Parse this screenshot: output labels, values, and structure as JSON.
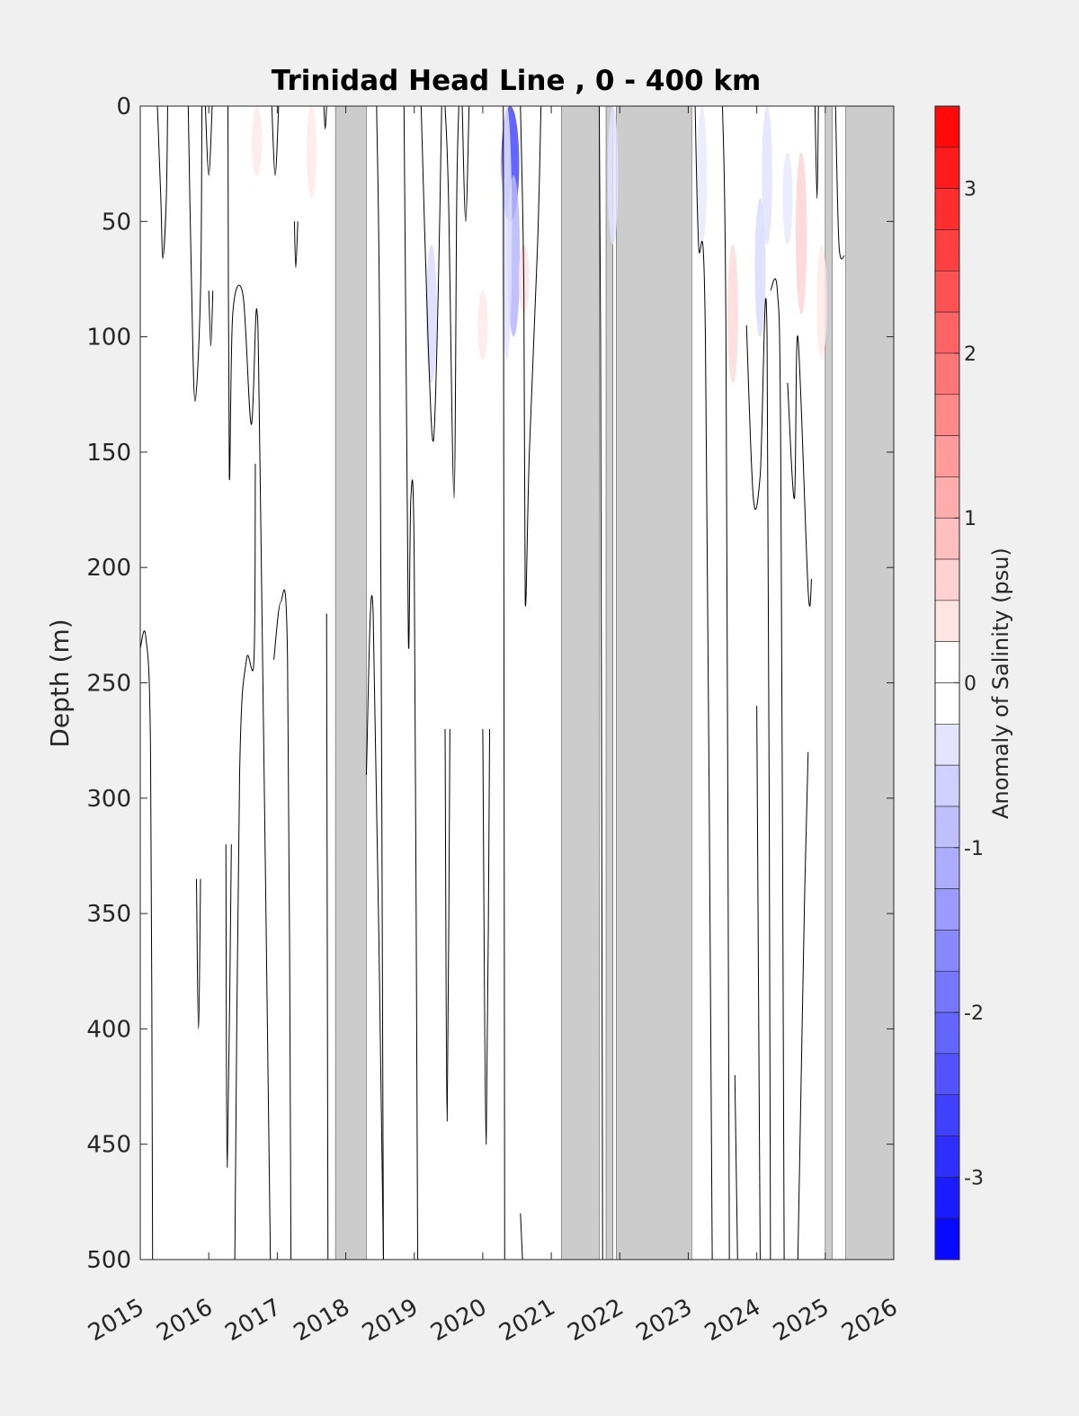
{
  "chart_data": {
    "type": "heatmap",
    "title": "Trinidad Head Line , 0 - 400 km",
    "xlabel": "",
    "ylabel": "Depth (m)",
    "colorbar_label": "Anomaly of Salinity (psu)",
    "xlim": [
      2015,
      2026
    ],
    "ylim": [
      0,
      500
    ],
    "y_reversed": true,
    "x_ticks": [
      2015,
      2016,
      2017,
      2018,
      2019,
      2020,
      2021,
      2022,
      2023,
      2024,
      2025,
      2026
    ],
    "y_ticks": [
      0,
      50,
      100,
      150,
      200,
      250,
      300,
      350,
      400,
      450,
      500
    ],
    "colorbar_ticks": [
      3,
      2,
      1,
      0,
      -1,
      -2,
      -3
    ],
    "colorbar_range": [
      -3.5,
      3.5
    ],
    "colorbar_step": 0.25,
    "colors": {
      "positive": "#ff0000",
      "negative": "#0000ff",
      "zero": "#ffffff",
      "no_data": "#cccccc",
      "contour": "#000000"
    },
    "no_data_periods": [
      [
        2017.85,
        2018.3
      ],
      [
        2021.15,
        2021.7
      ],
      [
        2021.8,
        2021.9
      ],
      [
        2021.95,
        2023.05
      ],
      [
        2025.0,
        2025.1
      ],
      [
        2025.3,
        2026.0
      ]
    ],
    "anomaly_patches": [
      {
        "x": 2020.4,
        "y_top": 0,
        "y_bottom": 50,
        "value": -2.5
      },
      {
        "x": 2020.45,
        "y_top": 30,
        "y_bottom": 100,
        "value": -1.0
      },
      {
        "x": 2019.25,
        "y_top": 60,
        "y_bottom": 120,
        "value": -0.5
      },
      {
        "x": 2020.35,
        "y_top": 0,
        "y_bottom": 110,
        "value": -0.4
      },
      {
        "x": 2021.9,
        "y_top": 0,
        "y_bottom": 60,
        "value": -0.4
      },
      {
        "x": 2023.2,
        "y_top": 0,
        "y_bottom": 60,
        "value": -0.3
      },
      {
        "x": 2024.05,
        "y_top": 40,
        "y_bottom": 100,
        "value": -0.5
      },
      {
        "x": 2024.15,
        "y_top": 0,
        "y_bottom": 60,
        "value": -0.4
      },
      {
        "x": 2024.45,
        "y_top": 20,
        "y_bottom": 60,
        "value": -0.3
      },
      {
        "x": 2017.5,
        "y_top": 0,
        "y_bottom": 40,
        "value": 0.3
      },
      {
        "x": 2016.7,
        "y_top": 0,
        "y_bottom": 30,
        "value": 0.3
      },
      {
        "x": 2020.6,
        "y_top": 60,
        "y_bottom": 90,
        "value": 0.4
      },
      {
        "x": 2020.0,
        "y_top": 80,
        "y_bottom": 110,
        "value": 0.3
      },
      {
        "x": 2023.65,
        "y_top": 60,
        "y_bottom": 120,
        "value": 0.5
      },
      {
        "x": 2024.65,
        "y_top": 20,
        "y_bottom": 90,
        "value": 0.6
      },
      {
        "x": 2024.95,
        "y_top": 60,
        "y_bottom": 110,
        "value": 0.3
      }
    ],
    "contour_level": 0,
    "contour_lines": [
      [
        [
          2015.25,
          0
        ],
        [
          2015.3,
          40
        ],
        [
          2015.33,
          66
        ],
        [
          2015.38,
          40
        ],
        [
          2015.4,
          0
        ]
      ],
      [
        [
          2015.7,
          0
        ],
        [
          2015.75,
          80
        ],
        [
          2015.8,
          128
        ],
        [
          2015.88,
          80
        ],
        [
          2015.9,
          0
        ]
      ],
      [
        [
          2015.95,
          0
        ],
        [
          2016.0,
          30
        ],
        [
          2016.05,
          0
        ]
      ],
      [
        [
          2016.0,
          80
        ],
        [
          2016.03,
          104
        ],
        [
          2016.06,
          80
        ]
      ],
      [
        [
          2015.82,
          335
        ],
        [
          2015.85,
          400
        ],
        [
          2015.88,
          335
        ]
      ],
      [
        [
          2016.28,
          0
        ],
        [
          2016.3,
          160
        ],
        [
          2016.35,
          90
        ],
        [
          2016.5,
          82
        ],
        [
          2016.62,
          138
        ],
        [
          2016.7,
          88
        ],
        [
          2016.75,
          160
        ],
        [
          2016.9,
          500
        ]
      ],
      [
        [
          2016.68,
          155
        ],
        [
          2016.66,
          240
        ],
        [
          2016.55,
          240
        ],
        [
          2016.45,
          290
        ],
        [
          2016.38,
          500
        ]
      ],
      [
        [
          2016.95,
          240
        ],
        [
          2017.05,
          215
        ],
        [
          2017.15,
          240
        ],
        [
          2017.2,
          500
        ]
      ],
      [
        [
          2016.25,
          320
        ],
        [
          2016.27,
          460
        ],
        [
          2016.33,
          320
        ]
      ],
      [
        [
          2016.92,
          0
        ],
        [
          2016.97,
          30
        ],
        [
          2017.02,
          0
        ]
      ],
      [
        [
          2017.25,
          50
        ],
        [
          2017.27,
          70
        ],
        [
          2017.3,
          50
        ]
      ],
      [
        [
          2017.72,
          220
        ],
        [
          2017.74,
          500
        ]
      ],
      [
        [
          2017.68,
          0
        ],
        [
          2017.7,
          10
        ],
        [
          2017.72,
          0
        ]
      ],
      [
        [
          2015.0,
          235
        ],
        [
          2015.08,
          230
        ],
        [
          2015.15,
          280
        ],
        [
          2015.18,
          500
        ]
      ],
      [
        [
          2018.3,
          290
        ],
        [
          2018.4,
          220
        ],
        [
          2018.55,
          500
        ]
      ],
      [
        [
          2018.45,
          0
        ],
        [
          2018.5,
          120
        ],
        [
          2018.55,
          500
        ]
      ],
      [
        [
          2018.85,
          0
        ],
        [
          2018.9,
          180
        ],
        [
          2018.92,
          235
        ],
        [
          2018.95,
          170
        ],
        [
          2019.0,
          200
        ],
        [
          2019.05,
          500
        ]
      ],
      [
        [
          2019.1,
          0
        ],
        [
          2019.2,
          100
        ],
        [
          2019.28,
          145
        ],
        [
          2019.35,
          80
        ],
        [
          2019.4,
          0
        ]
      ],
      [
        [
          2019.45,
          0
        ],
        [
          2019.5,
          40
        ],
        [
          2019.58,
          170
        ],
        [
          2019.62,
          40
        ],
        [
          2019.65,
          0
        ]
      ],
      [
        [
          2019.45,
          270
        ],
        [
          2019.48,
          440
        ],
        [
          2019.52,
          270
        ]
      ],
      [
        [
          2019.7,
          0
        ],
        [
          2019.75,
          50
        ],
        [
          2019.8,
          0
        ]
      ],
      [
        [
          2020.0,
          270
        ],
        [
          2020.05,
          450
        ],
        [
          2020.1,
          270
        ]
      ],
      [
        [
          2020.3,
          0
        ],
        [
          2020.32,
          500
        ]
      ],
      [
        [
          2020.55,
          0
        ],
        [
          2020.6,
          80
        ],
        [
          2020.62,
          215
        ],
        [
          2020.68,
          150
        ],
        [
          2020.8,
          60
        ],
        [
          2020.85,
          0
        ]
      ],
      [
        [
          2020.55,
          480
        ],
        [
          2020.58,
          500
        ]
      ],
      [
        [
          2021.7,
          0
        ],
        [
          2021.72,
          100
        ],
        [
          2021.75,
          500
        ]
      ],
      [
        [
          2023.1,
          0
        ],
        [
          2023.15,
          60
        ],
        [
          2023.25,
          100
        ],
        [
          2023.35,
          500
        ]
      ],
      [
        [
          2023.5,
          0
        ],
        [
          2023.55,
          100
        ],
        [
          2023.6,
          500
        ]
      ],
      [
        [
          2023.68,
          420
        ],
        [
          2023.72,
          500
        ]
      ],
      [
        [
          2023.85,
          95
        ],
        [
          2023.95,
          170
        ],
        [
          2024.05,
          160
        ],
        [
          2024.15,
          100
        ],
        [
          2024.2,
          500
        ]
      ],
      [
        [
          2024.2,
          80
        ],
        [
          2024.3,
          80
        ],
        [
          2024.35,
          150
        ],
        [
          2024.4,
          500
        ]
      ],
      [
        [
          2024.0,
          260
        ],
        [
          2024.05,
          500
        ]
      ],
      [
        [
          2024.45,
          120
        ],
        [
          2024.55,
          170
        ],
        [
          2024.6,
          100
        ],
        [
          2024.75,
          210
        ],
        [
          2024.8,
          205
        ]
      ],
      [
        [
          2024.75,
          280
        ],
        [
          2024.7,
          340
        ],
        [
          2024.6,
          500
        ]
      ],
      [
        [
          2024.85,
          0
        ],
        [
          2024.88,
          40
        ],
        [
          2024.9,
          0
        ]
      ],
      [
        [
          2025.15,
          0
        ],
        [
          2025.2,
          60
        ],
        [
          2025.28,
          65
        ]
      ]
    ]
  }
}
